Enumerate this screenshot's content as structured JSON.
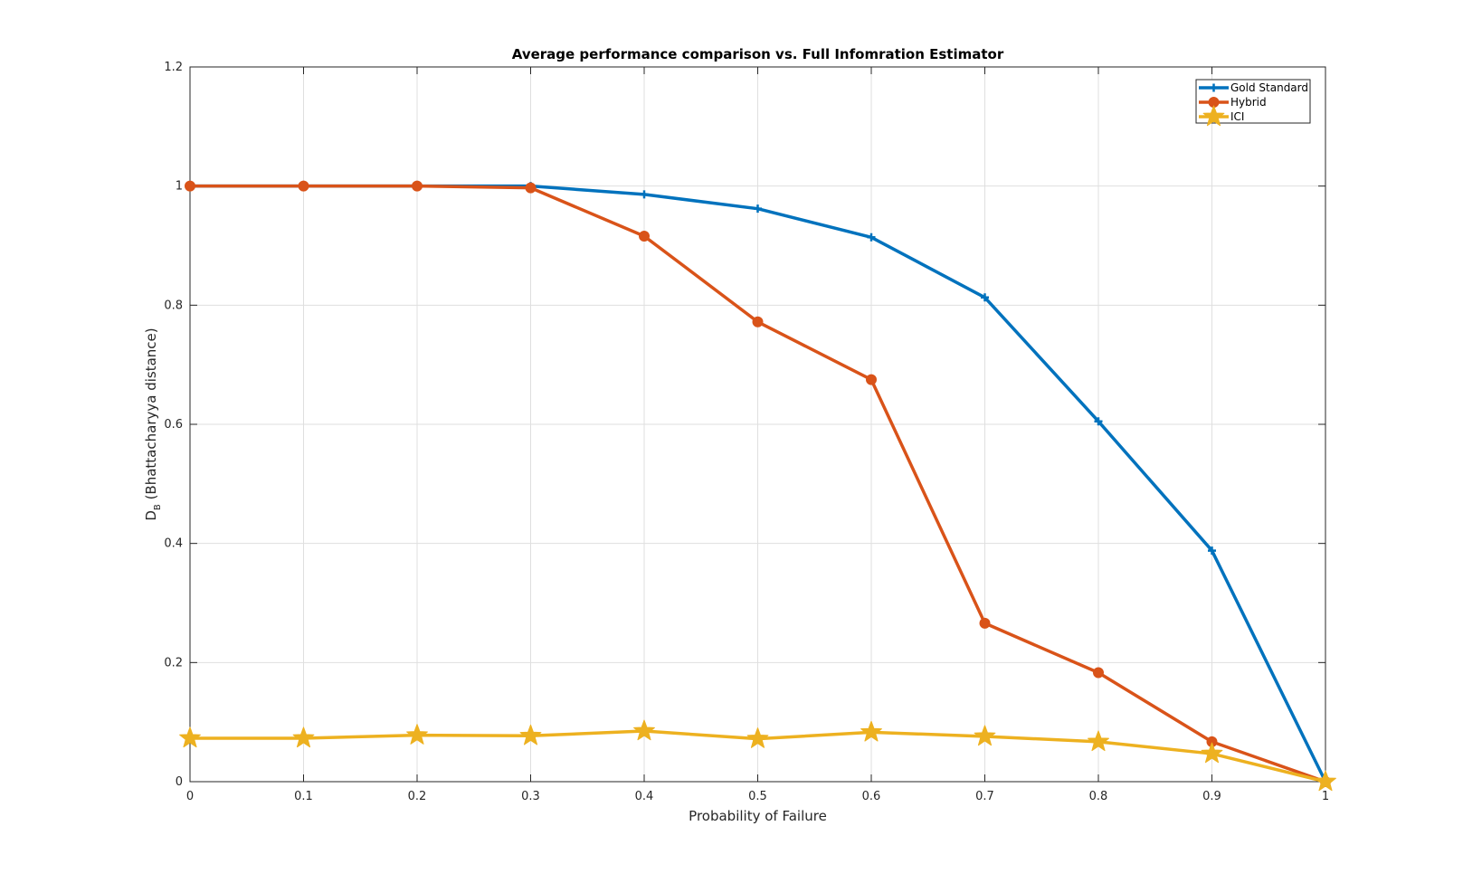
{
  "chart_data": {
    "type": "line",
    "title": "Average performance comparison vs. Full Infomration Estimator",
    "xlabel": "Probability of Failure",
    "ylabel": "D",
    "ylabel_subscript": "B",
    "ylabel_suffix": " (Bhattacharyya distance)",
    "xlim": [
      0,
      1
    ],
    "ylim": [
      0,
      1.2
    ],
    "x_ticks": [
      "0",
      "0.1",
      "0.2",
      "0.3",
      "0.4",
      "0.5",
      "0.6",
      "0.7",
      "0.8",
      "0.9",
      "1"
    ],
    "y_ticks": [
      "0",
      "0.2",
      "0.4",
      "0.6",
      "0.8",
      "1",
      "1.2"
    ],
    "grid": true,
    "legend_position": "top-right",
    "x": [
      0,
      0.1,
      0.2,
      0.3,
      0.4,
      0.5,
      0.6,
      0.7,
      0.8,
      0.9,
      1.0
    ],
    "series": [
      {
        "name": "Gold Standard",
        "color": "#0072bd",
        "marker": "plus",
        "values": [
          1.0,
          1.0,
          1.0,
          1.0,
          0.986,
          0.962,
          0.914,
          0.813,
          0.605,
          0.388,
          0.0
        ]
      },
      {
        "name": "Hybrid",
        "color": "#d95319",
        "marker": "circle",
        "values": [
          1.0,
          1.0,
          1.0,
          0.997,
          0.916,
          0.772,
          0.675,
          0.266,
          0.183,
          0.067,
          0.0
        ]
      },
      {
        "name": "ICI",
        "color": "#edb120",
        "marker": "star",
        "values": [
          0.073,
          0.073,
          0.078,
          0.077,
          0.085,
          0.072,
          0.083,
          0.076,
          0.067,
          0.047,
          0.0
        ]
      }
    ]
  }
}
